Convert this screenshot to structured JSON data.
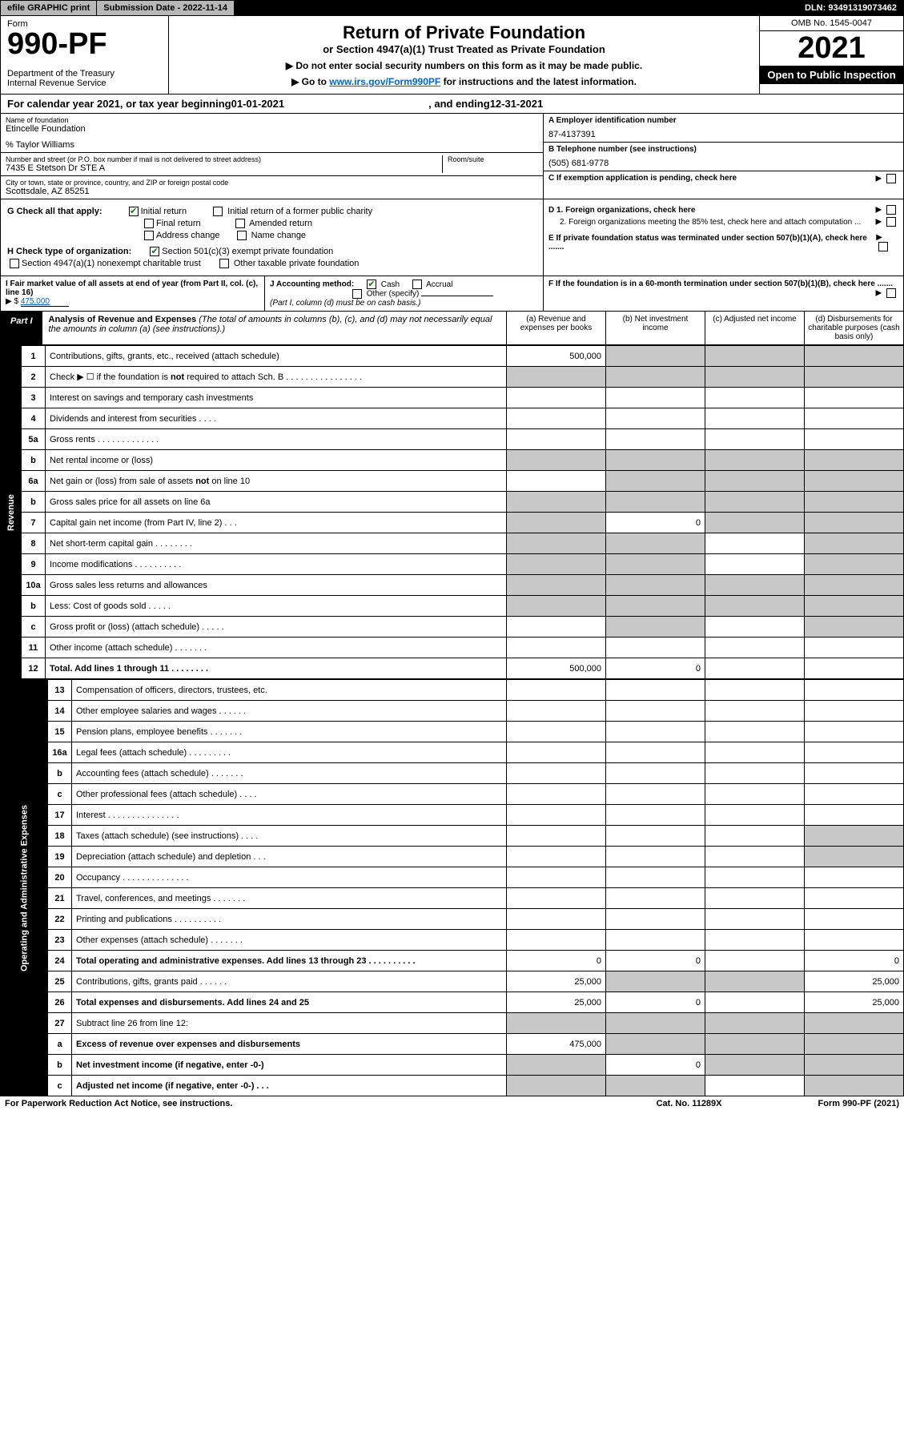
{
  "topbar": {
    "efile": "efile GRAPHIC print",
    "subdate_label": "Submission Date - ",
    "subdate": "2022-11-14",
    "dln_label": "DLN: ",
    "dln": "93491319073462"
  },
  "header": {
    "form_label": "Form",
    "form_no": "990-PF",
    "dept": "Department of the Treasury\nInternal Revenue Service",
    "title": "Return of Private Foundation",
    "subtitle": "or Section 4947(a)(1) Trust Treated as Private Foundation",
    "note1": "▶ Do not enter social security numbers on this form as it may be made public.",
    "note2_pre": "▶ Go to ",
    "note2_link": "www.irs.gov/Form990PF",
    "note2_post": " for instructions and the latest information.",
    "omb": "OMB No. 1545-0047",
    "year": "2021",
    "inspect": "Open to Public Inspection"
  },
  "calyear": {
    "pre": "For calendar year 2021, or tax year beginning ",
    "begin": "01-01-2021",
    "mid": ", and ending ",
    "end": "12-31-2021"
  },
  "info": {
    "name_lbl": "Name of foundation",
    "name": "Etincelle Foundation",
    "care_of": "% Taylor Williams",
    "addr_lbl": "Number and street (or P.O. box number if mail is not delivered to street address)",
    "addr": "7435 E Stetson Dr STE A",
    "room_lbl": "Room/suite",
    "city_lbl": "City or town, state or province, country, and ZIP or foreign postal code",
    "city": "Scottsdale, AZ  85251",
    "a_lbl": "A Employer identification number",
    "a_val": "87-4137391",
    "b_lbl": "B Telephone number (see instructions)",
    "b_val": "(505) 681-9778",
    "c_lbl": "C If exemption application is pending, check here",
    "d1_lbl": "D 1. Foreign organizations, check here",
    "d2_lbl": "2. Foreign organizations meeting the 85% test, check here and attach computation ...",
    "e_lbl": "E If private foundation status was terminated under section 507(b)(1)(A), check here .......",
    "f_lbl": "F  If the foundation is in a 60-month termination under section 507(b)(1)(B), check here ......."
  },
  "g": {
    "label": "G Check all that apply:",
    "opts": [
      "Initial return",
      "Initial return of a former public charity",
      "Final return",
      "Amended return",
      "Address change",
      "Name change"
    ],
    "checked": [
      true,
      false,
      false,
      false,
      false,
      false
    ]
  },
  "h": {
    "label": "H Check type of organization:",
    "opts": [
      "Section 501(c)(3) exempt private foundation",
      "Section 4947(a)(1) nonexempt charitable trust",
      "Other taxable private foundation"
    ],
    "checked": [
      true,
      false,
      false
    ]
  },
  "i": {
    "label": "I Fair market value of all assets at end of year (from Part II, col. (c), line 16)",
    "val_pre": "▶ $  ",
    "val": "475,000"
  },
  "j": {
    "label": "J Accounting method:",
    "opts": [
      "Cash",
      "Accrual",
      "Other (specify)"
    ],
    "checked": [
      true,
      false,
      false
    ],
    "note": "(Part I, column (d) must be on cash basis.)"
  },
  "part1": {
    "tag": "Part I",
    "title": "Analysis of Revenue and Expenses",
    "subtitle": " (The total of amounts in columns (b), (c), and (d) may not necessarily equal the amounts in column (a) (see instructions).)",
    "cols": [
      "(a)   Revenue and expenses per books",
      "(b)   Net investment income",
      "(c)   Adjusted net income",
      "(d)   Disbursements for charitable purposes (cash basis only)"
    ]
  },
  "sidelabels": {
    "revenue": "Revenue",
    "expenses": "Operating and Administrative Expenses"
  },
  "rows": [
    {
      "n": "1",
      "d": "Contributions, gifts, grants, etc., received (attach schedule)",
      "a": "500,000",
      "sb": true,
      "sc": true,
      "sd": true
    },
    {
      "n": "2",
      "d": "Check ▶ ☐ if the foundation is not required to attach Sch. B     .  .  .  .  .  .  .  .  .  .  .  .  .  .  .  .",
      "sa": true,
      "sb": true,
      "sc": true,
      "sd": true
    },
    {
      "n": "3",
      "d": "Interest on savings and temporary cash investments"
    },
    {
      "n": "4",
      "d": "Dividends and interest from securities     .  .  .  ."
    },
    {
      "n": "5a",
      "d": "Gross rents     .  .  .  .  .  .  .  .  .  .  .  .  ."
    },
    {
      "n": "b",
      "d": "Net rental income or (loss)  ",
      "sa": true,
      "sb": true,
      "sc": true,
      "sd": true
    },
    {
      "n": "6a",
      "d": "Net gain or (loss) from sale of assets not on line 10",
      "sb": true,
      "sc": true,
      "sd": true
    },
    {
      "n": "b",
      "d": "Gross sales price for all assets on line 6a ",
      "sa": true,
      "sb": true,
      "sc": true,
      "sd": true
    },
    {
      "n": "7",
      "d": "Capital gain net income (from Part IV, line 2)   .  .  .",
      "b": "0",
      "sa": true,
      "sc": true,
      "sd": true
    },
    {
      "n": "8",
      "d": "Net short-term capital gain   .  .  .  .  .  .  .  .",
      "sa": true,
      "sb": true,
      "sd": true
    },
    {
      "n": "9",
      "d": "Income modifications  .  .  .  .  .  .  .  .  .  .",
      "sa": true,
      "sb": true,
      "sd": true
    },
    {
      "n": "10a",
      "d": "Gross sales less returns and allowances",
      "sa": true,
      "sb": true,
      "sc": true,
      "sd": true
    },
    {
      "n": "b",
      "d": "Less: Cost of goods sold     .  .  .  .  .",
      "sa": true,
      "sb": true,
      "sc": true,
      "sd": true
    },
    {
      "n": "c",
      "d": "Gross profit or (loss) (attach schedule)    .  .  .  .  .",
      "sb": true,
      "sd": true
    },
    {
      "n": "11",
      "d": "Other income (attach schedule)    .  .  .  .  .  .  ."
    },
    {
      "n": "12",
      "d": "Total. Add lines 1 through 11    .  .  .  .  .  .  .  .",
      "a": "500,000",
      "b": "0",
      "bold": true
    }
  ],
  "exp_rows": [
    {
      "n": "13",
      "d": "Compensation of officers, directors, trustees, etc."
    },
    {
      "n": "14",
      "d": "Other employee salaries and wages    .  .  .  .  .  ."
    },
    {
      "n": "15",
      "d": "Pension plans, employee benefits  .  .  .  .  .  .  ."
    },
    {
      "n": "16a",
      "d": "Legal fees (attach schedule)  .  .  .  .  .  .  .  .  ."
    },
    {
      "n": "b",
      "d": "Accounting fees (attach schedule)  .  .  .  .  .  .  ."
    },
    {
      "n": "c",
      "d": "Other professional fees (attach schedule)    .  .  .  ."
    },
    {
      "n": "17",
      "d": "Interest  .  .  .  .  .  .  .  .  .  .  .  .  .  .  ."
    },
    {
      "n": "18",
      "d": "Taxes (attach schedule) (see instructions)    .  .  .  .",
      "sd": true
    },
    {
      "n": "19",
      "d": "Depreciation (attach schedule) and depletion    .  .  .",
      "sd": true
    },
    {
      "n": "20",
      "d": "Occupancy  .  .  .  .  .  .  .  .  .  .  .  .  .  ."
    },
    {
      "n": "21",
      "d": "Travel, conferences, and meetings  .  .  .  .  .  .  ."
    },
    {
      "n": "22",
      "d": "Printing and publications  .  .  .  .  .  .  .  .  .  ."
    },
    {
      "n": "23",
      "d": "Other expenses (attach schedule)   .  .  .  .  .  .  ."
    },
    {
      "n": "24",
      "d": "Total operating and administrative expenses. Add lines 13 through 23    .  .  .  .  .  .  .  .  .  .",
      "a": "0",
      "b": "0",
      "d_": "0",
      "bold": true
    },
    {
      "n": "25",
      "d": "Contributions, gifts, grants paid     .  .  .  .  .  .",
      "a": "25,000",
      "d_": "25,000",
      "sb": true,
      "sc": true
    },
    {
      "n": "26",
      "d": "Total expenses and disbursements. Add lines 24 and 25",
      "a": "25,000",
      "b": "0",
      "d_": "25,000",
      "bold": true
    },
    {
      "n": "27",
      "d": "Subtract line 26 from line 12:",
      "sa": true,
      "sb": true,
      "sc": true,
      "sd": true
    },
    {
      "n": "a",
      "d": "Excess of revenue over expenses and disbursements",
      "a": "475,000",
      "sb": true,
      "sc": true,
      "sd": true,
      "bold": true
    },
    {
      "n": "b",
      "d": "Net investment income (if negative, enter -0-)",
      "b": "0",
      "sa": true,
      "sc": true,
      "sd": true,
      "bold": true
    },
    {
      "n": "c",
      "d": "Adjusted net income (if negative, enter -0-)   .  .  .",
      "sa": true,
      "sb": true,
      "sd": true,
      "bold": true
    }
  ],
  "footer": {
    "l": "For Paperwork Reduction Act Notice, see instructions.",
    "c": "Cat. No. 11289X",
    "r": "Form 990-PF (2021)"
  },
  "colors": {
    "shaded": "#c8c8c8",
    "link": "#0066cc",
    "check": "#0a7a0a"
  }
}
